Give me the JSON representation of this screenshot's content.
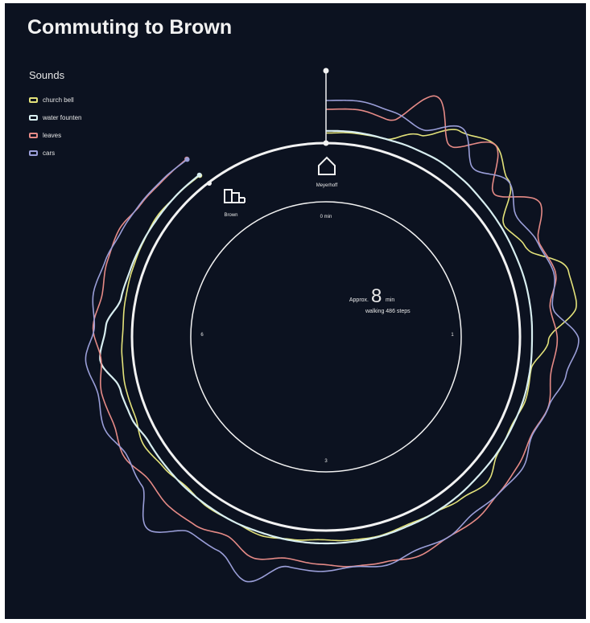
{
  "title": "Commuting to Brown",
  "legend_title": "Sounds",
  "colors": {
    "background": "#0c1220",
    "church_bell": "#e3e27a",
    "water_fountain": "#d8eef0",
    "leaves": "#e58a86",
    "cars": "#9a9ed8",
    "ring": "#f2f2f2"
  },
  "chart_data": {
    "type": "radial-line",
    "title": "Commuting to Brown",
    "legend_title": "Sounds",
    "dial_ticks": [
      "0 min",
      "1",
      "3",
      "6"
    ],
    "start_label": "Meyerhoff",
    "end_label": "Brown",
    "summary": {
      "prefix": "Approx.",
      "minutes": "8",
      "unit": "min",
      "steps_text": "walking 486 steps"
    },
    "series": [
      {
        "name": "church bell",
        "color": "#e3e27a",
        "values": [
          0.25,
          0.35,
          0.4,
          1.3,
          2.6,
          3.2,
          2.3,
          0.6,
          1.1,
          2.9,
          3.0,
          1.3,
          0.45,
          0.55,
          0.35,
          0.45,
          1.0,
          0.65,
          0.4,
          0.3,
          0.38,
          0.3,
          0.2,
          0.35,
          0.55,
          0.4,
          0.45,
          0.3,
          0.5,
          0.7,
          0.4,
          0.4,
          0.3,
          0.2,
          0.25,
          0.3,
          0.35,
          0.45,
          0.35,
          0.3
        ]
      },
      {
        "name": "water fountain",
        "color": "#d8eef0",
        "values": [
          0.22,
          0.3,
          0.3,
          0.45,
          0.6,
          0.5,
          0.35,
          0.3,
          0.25,
          0.28,
          0.25,
          0.2,
          0.28,
          0.35,
          0.3,
          0.3,
          0.25,
          0.3,
          0.3,
          0.25,
          0.32,
          0.3,
          0.3,
          0.3,
          0.25,
          0.3,
          0.25,
          0.25,
          0.2,
          0.2,
          0.8,
          1.0,
          2.8,
          2.0,
          0.5,
          0.3,
          0.25,
          0.2,
          0.2,
          0.15
        ]
      },
      {
        "name": "leaves",
        "color": "#e58a86",
        "values": [
          1.0,
          1.1,
          0.9,
          3.1,
          1.0,
          2.6,
          0.6,
          2.4,
          1.3,
          1.6,
          0.9,
          1.2,
          1.0,
          1.3,
          1.0,
          1.2,
          1.3,
          1.5,
          1.4,
          1.6,
          1.3,
          1.2,
          1.0,
          0.85,
          1.3,
          0.7,
          1.1,
          1.2,
          1.0,
          1.4,
          1.1,
          1.2,
          0.9,
          1.3,
          1.0,
          1.2,
          1.3,
          1.0,
          0.9,
          0.9
        ]
      },
      {
        "name": "cars",
        "color": "#9a9ed8",
        "values": [
          1.3,
          1.4,
          1.2,
          0.8,
          2.1,
          0.5,
          1.5,
          0.6,
          1.0,
          1.3,
          0.8,
          2.3,
          1.7,
          1.1,
          0.8,
          1.3,
          1.1,
          0.9,
          1.2,
          1.0,
          1.3,
          1.0,
          1.2,
          1.1,
          2.6,
          1.5,
          1.4,
          2.9,
          1.3,
          1.0,
          1.5,
          1.2,
          1.6,
          1.0,
          1.3,
          1.1,
          0.9,
          0.8,
          0.7,
          0.6
        ]
      }
    ]
  }
}
